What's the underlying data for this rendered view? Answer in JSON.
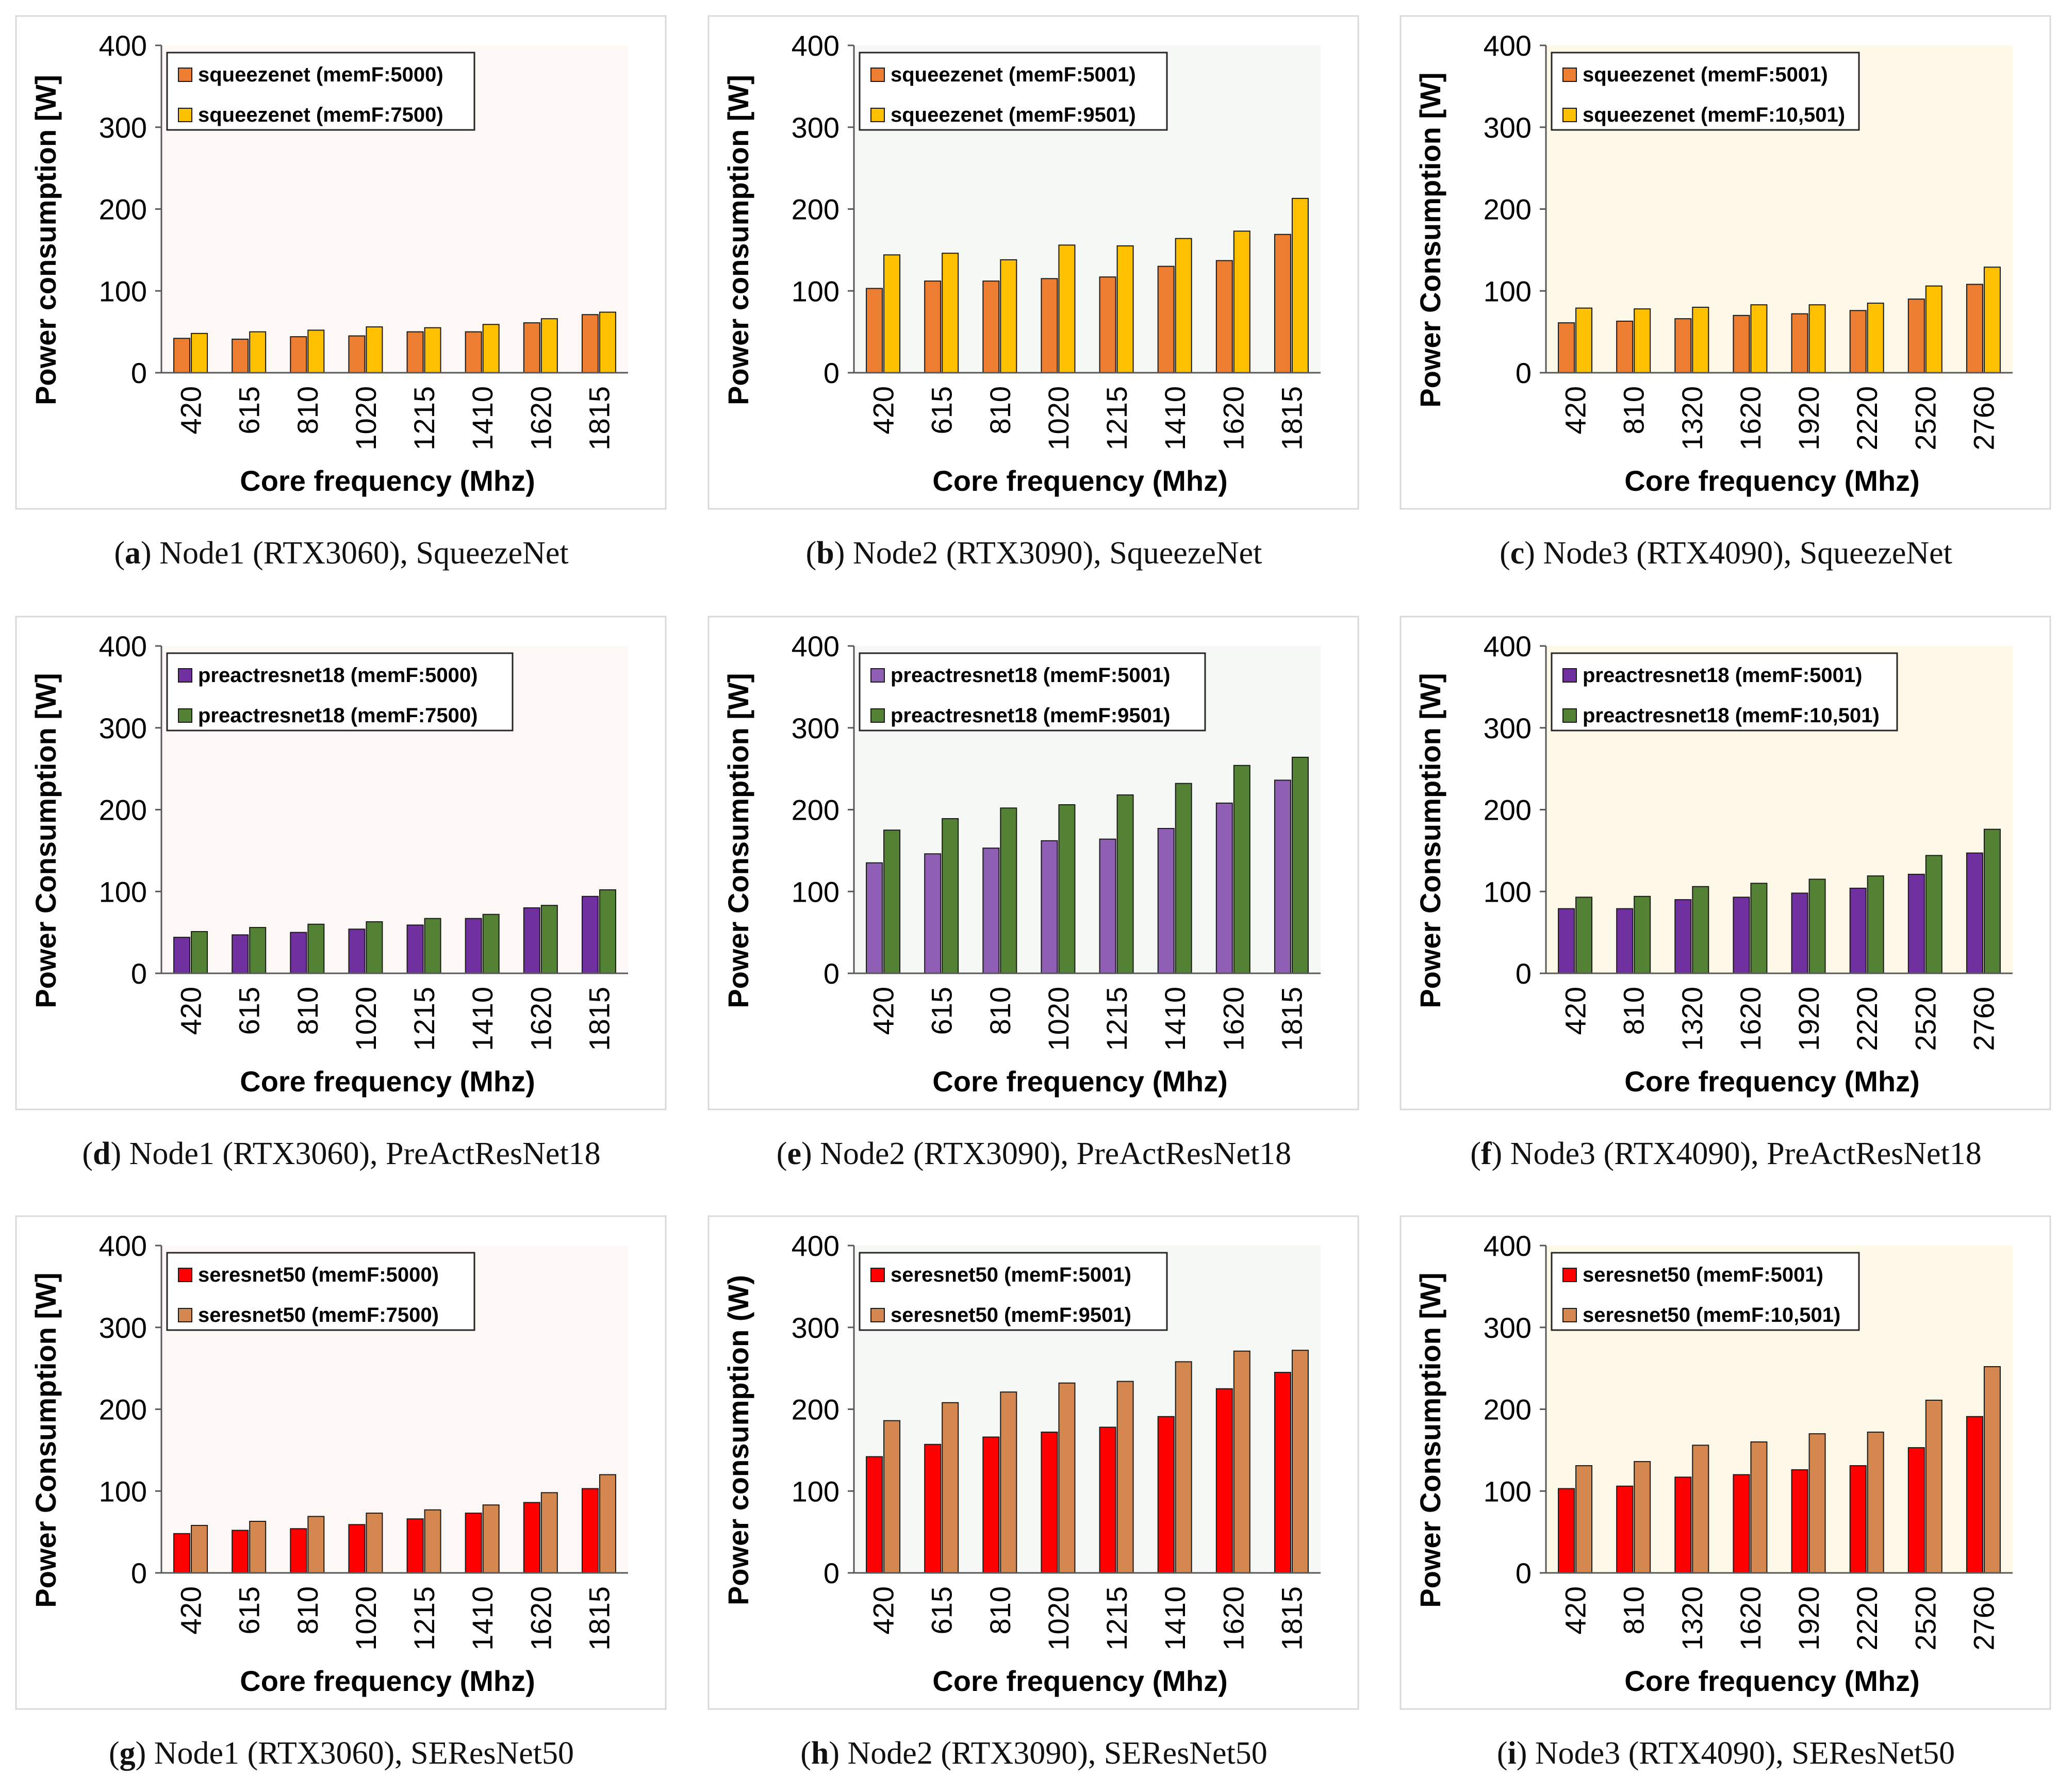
{
  "chart_data": [
    {
      "id": "a",
      "type": "bar",
      "title": "",
      "caption_letter": "a",
      "caption_text": " Node1 (RTX3060), SqueezeNet",
      "xlabel": "Core frequency (Mhz)",
      "ylabel": "Power consumption [W]",
      "ylim": [
        0,
        400
      ],
      "yticks": [
        "0",
        "100",
        "200",
        "300",
        "400"
      ],
      "categories": [
        "420",
        "615",
        "810",
        "1020",
        "1215",
        "1410",
        "1620",
        "1815"
      ],
      "colors": [
        "#ed7d31",
        "#ffc000"
      ],
      "bg": "#fdf8f5",
      "series": [
        {
          "name": "squeezenet (memF:5000)",
          "values": [
            42,
            41,
            44,
            45,
            50,
            50,
            61,
            71
          ]
        },
        {
          "name": "squeezenet (memF:7500)",
          "values": [
            48,
            50,
            52,
            56,
            55,
            59,
            66,
            74
          ]
        }
      ]
    },
    {
      "id": "b",
      "type": "bar",
      "title": "",
      "caption_letter": "b",
      "caption_text": " Node2 (RTX3090), SqueezeNet",
      "xlabel": "Core frequency (Mhz)",
      "ylabel": "Power consumption [W]",
      "ylim": [
        0,
        400
      ],
      "yticks": [
        "0",
        "100",
        "200",
        "300",
        "400"
      ],
      "categories": [
        "420",
        "615",
        "810",
        "1020",
        "1215",
        "1410",
        "1620",
        "1815"
      ],
      "colors": [
        "#ed7d31",
        "#ffc000"
      ],
      "bg": "#f5f8f4",
      "series": [
        {
          "name": "squeezenet (memF:5001)",
          "values": [
            103,
            112,
            112,
            115,
            117,
            130,
            137,
            169
          ]
        },
        {
          "name": "squeezenet (memF:9501)",
          "values": [
            144,
            146,
            138,
            156,
            155,
            164,
            173,
            213
          ]
        }
      ]
    },
    {
      "id": "c",
      "type": "bar",
      "title": "",
      "caption_letter": "c",
      "caption_text": " Node3 (RTX4090), SqueezeNet",
      "xlabel": "Core frequency (Mhz)",
      "ylabel": "Power Consumption [W]",
      "ylim": [
        0,
        400
      ],
      "yticks": [
        "0",
        "100",
        "200",
        "300",
        "400"
      ],
      "categories": [
        "420",
        "810",
        "1320",
        "1620",
        "1920",
        "2220",
        "2520",
        "2760"
      ],
      "colors": [
        "#ed7d31",
        "#ffc000"
      ],
      "bg": "#fef8e8",
      "series": [
        {
          "name": "squeezenet (memF:5001)",
          "values": [
            61,
            63,
            66,
            70,
            72,
            76,
            90,
            108
          ]
        },
        {
          "name": "squeezenet (memF:10,501)",
          "values": [
            79,
            78,
            80,
            83,
            83,
            85,
            106,
            129
          ]
        }
      ]
    },
    {
      "id": "d",
      "type": "bar",
      "title": "",
      "caption_letter": "d",
      "caption_text": " Node1 (RTX3060), PreActResNet18",
      "xlabel": "Core frequency (Mhz)",
      "ylabel": "Power Consumption [W]",
      "ylim": [
        0,
        400
      ],
      "yticks": [
        "0",
        "100",
        "200",
        "300",
        "400"
      ],
      "categories": [
        "420",
        "615",
        "810",
        "1020",
        "1215",
        "1410",
        "1620",
        "1815"
      ],
      "colors": [
        "#7030a0",
        "#548235"
      ],
      "bg": "#fdf8f5",
      "series": [
        {
          "name": "preactresnet18 (memF:5000)",
          "values": [
            44,
            47,
            50,
            54,
            59,
            67,
            80,
            94
          ]
        },
        {
          "name": "preactresnet18 (memF:7500)",
          "values": [
            51,
            56,
            60,
            63,
            67,
            72,
            83,
            102
          ]
        }
      ]
    },
    {
      "id": "e",
      "type": "bar",
      "title": "",
      "caption_letter": "e",
      "caption_text": " Node2 (RTX3090), PreActResNet18",
      "xlabel": "Core frequency (Mhz)",
      "ylabel": "Power Consumption [W]",
      "ylim": [
        0,
        400
      ],
      "yticks": [
        "0",
        "100",
        "200",
        "300",
        "400"
      ],
      "categories": [
        "420",
        "615",
        "810",
        "1020",
        "1215",
        "1410",
        "1620",
        "1815"
      ],
      "colors": [
        "#8e5fb5",
        "#548235"
      ],
      "bg": "#f5f8f4",
      "series": [
        {
          "name": "preactresnet18 (memF:5001)",
          "values": [
            135,
            146,
            153,
            162,
            164,
            177,
            208,
            236
          ]
        },
        {
          "name": "preactresnet18 (memF:9501)",
          "values": [
            175,
            189,
            202,
            206,
            218,
            232,
            254,
            264
          ]
        }
      ]
    },
    {
      "id": "f",
      "type": "bar",
      "title": "",
      "caption_letter": "f",
      "caption_text": " Node3 (RTX4090), PreActResNet18",
      "xlabel": "Core frequency (Mhz)",
      "ylabel": "Power Consumption [W]",
      "ylim": [
        0,
        400
      ],
      "yticks": [
        "0",
        "100",
        "200",
        "300",
        "400"
      ],
      "categories": [
        "420",
        "810",
        "1320",
        "1620",
        "1920",
        "2220",
        "2520",
        "2760"
      ],
      "colors": [
        "#7030a0",
        "#548235"
      ],
      "bg": "#fef8e8",
      "series": [
        {
          "name": "preactresnet18 (memF:5001)",
          "values": [
            79,
            79,
            90,
            93,
            98,
            104,
            121,
            147
          ]
        },
        {
          "name": "preactresnet18 (memF:10,501)",
          "values": [
            93,
            94,
            106,
            110,
            115,
            119,
            144,
            176
          ]
        }
      ]
    },
    {
      "id": "g",
      "type": "bar",
      "title": "",
      "caption_letter": "g",
      "caption_text": " Node1 (RTX3060), SEResNet50",
      "xlabel": "Core frequency (Mhz)",
      "ylabel": "Power Consumption [W]",
      "ylim": [
        0,
        400
      ],
      "yticks": [
        "0",
        "100",
        "200",
        "300",
        "400"
      ],
      "categories": [
        "420",
        "615",
        "810",
        "1020",
        "1215",
        "1410",
        "1620",
        "1815"
      ],
      "colors": [
        "#ff0000",
        "#d4874f"
      ],
      "bg": "#fdf8f5",
      "series": [
        {
          "name": "seresnet50 (memF:5000)",
          "values": [
            48,
            52,
            54,
            59,
            66,
            73,
            86,
            103
          ]
        },
        {
          "name": "seresnet50 (memF:7500)",
          "values": [
            58,
            63,
            69,
            73,
            77,
            83,
            98,
            120
          ]
        }
      ]
    },
    {
      "id": "h",
      "type": "bar",
      "title": "",
      "caption_letter": "h",
      "caption_text": " Node2 (RTX3090), SEResNet50",
      "xlabel": "Core frequency (Mhz)",
      "ylabel": "Power consumption (W)",
      "ylim": [
        0,
        400
      ],
      "yticks": [
        "0",
        "100",
        "200",
        "300",
        "400"
      ],
      "categories": [
        "420",
        "615",
        "810",
        "1020",
        "1215",
        "1410",
        "1620",
        "1815"
      ],
      "colors": [
        "#ff0000",
        "#d4874f"
      ],
      "bg": "#f5f8f4",
      "series": [
        {
          "name": "seresnet50 (memF:5001)",
          "values": [
            142,
            157,
            166,
            172,
            178,
            191,
            225,
            245
          ]
        },
        {
          "name": "seresnet50 (memF:9501)",
          "values": [
            186,
            208,
            221,
            232,
            234,
            258,
            271,
            272
          ]
        }
      ]
    },
    {
      "id": "i",
      "type": "bar",
      "title": "",
      "caption_letter": "i",
      "caption_text": " Node3 (RTX4090), SEResNet50",
      "xlabel": "Core frequency (Mhz)",
      "ylabel": "Power Consumption [W]",
      "ylim": [
        0,
        400
      ],
      "yticks": [
        "0",
        "100",
        "200",
        "300",
        "400"
      ],
      "categories": [
        "420",
        "810",
        "1320",
        "1620",
        "1920",
        "2220",
        "2520",
        "2760"
      ],
      "colors": [
        "#ff0000",
        "#d4874f"
      ],
      "bg": "#fef8e8",
      "series": [
        {
          "name": "seresnet50 (memF:5001)",
          "values": [
            103,
            106,
            117,
            120,
            126,
            131,
            153,
            191
          ]
        },
        {
          "name": "seresnet50 (memF:10,501)",
          "values": [
            131,
            136,
            156,
            160,
            170,
            172,
            211,
            252
          ]
        }
      ]
    }
  ]
}
